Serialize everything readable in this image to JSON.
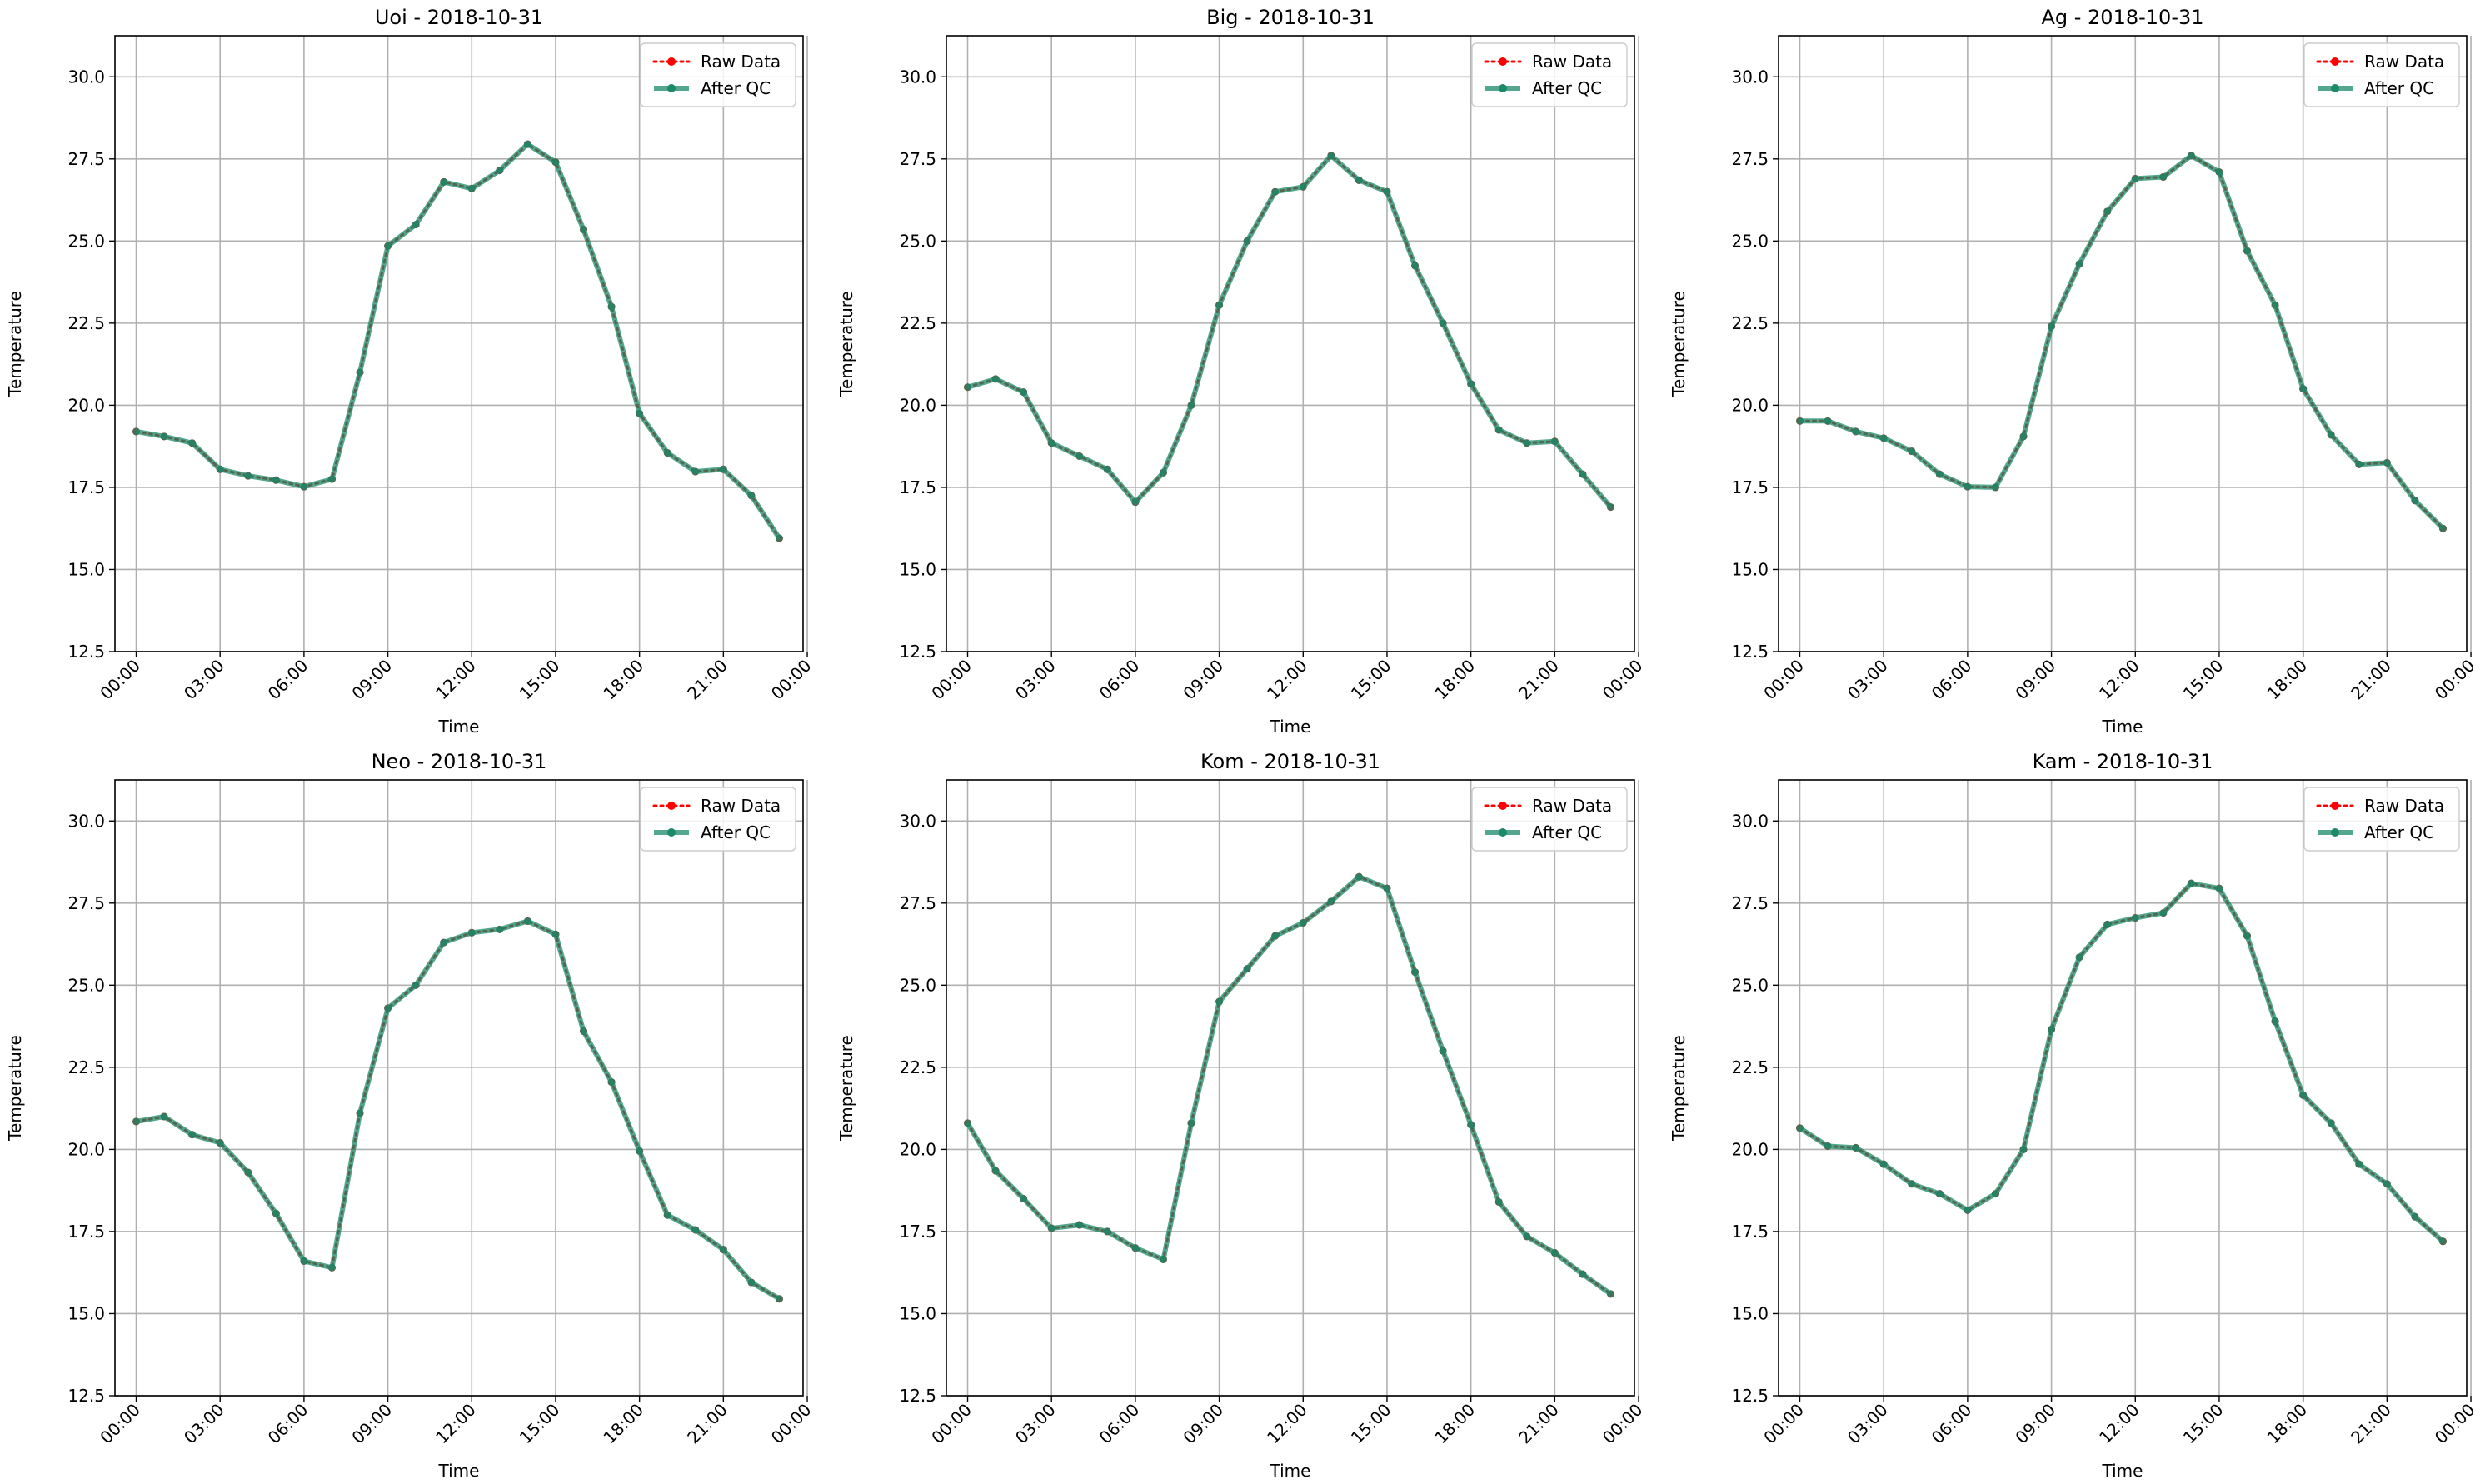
{
  "chart_data": [
    {
      "type": "line",
      "title": "Uoi - 2018-10-31",
      "xlabel": "Time",
      "ylabel": "Temperature",
      "ylim": [
        12.5,
        31.25
      ],
      "yticks": [
        "12.5",
        "15.0",
        "17.5",
        "20.0",
        "22.5",
        "25.0",
        "27.5",
        "30.0"
      ],
      "xticks": [
        "00:00",
        "03:00",
        "06:00",
        "09:00",
        "12:00",
        "15:00",
        "18:00",
        "21:00",
        "00:00"
      ],
      "grid": true,
      "legend": "top-right",
      "x": [
        0,
        1,
        2,
        3,
        4,
        5,
        6,
        7,
        8,
        9,
        10,
        11,
        12,
        13,
        14,
        15,
        16,
        17,
        18,
        19,
        20,
        21,
        22,
        23
      ],
      "series": [
        {
          "name": "Raw Data",
          "color": "#ff0000",
          "style": "dotted",
          "values": [
            19.2,
            19.05,
            18.85,
            18.05,
            17.85,
            17.72,
            17.52,
            17.75,
            21.0,
            24.85,
            25.5,
            26.8,
            26.6,
            27.15,
            27.95,
            27.4,
            25.35,
            23.0,
            19.75,
            18.55,
            17.98,
            18.05,
            17.25,
            15.95
          ]
        },
        {
          "name": "After QC",
          "color": "#1a8a6a",
          "style": "solid",
          "values": [
            19.2,
            19.05,
            18.85,
            18.05,
            17.85,
            17.72,
            17.52,
            17.75,
            21.0,
            24.85,
            25.5,
            26.8,
            26.6,
            27.15,
            27.95,
            27.4,
            25.35,
            23.0,
            19.75,
            18.55,
            17.98,
            18.05,
            17.25,
            15.95
          ]
        }
      ]
    },
    {
      "type": "line",
      "title": "Big - 2018-10-31",
      "xlabel": "Time",
      "ylabel": "Temperature",
      "ylim": [
        12.5,
        31.25
      ],
      "yticks": [
        "12.5",
        "15.0",
        "17.5",
        "20.0",
        "22.5",
        "25.0",
        "27.5",
        "30.0"
      ],
      "xticks": [
        "00:00",
        "03:00",
        "06:00",
        "09:00",
        "12:00",
        "15:00",
        "18:00",
        "21:00",
        "00:00"
      ],
      "grid": true,
      "legend": "top-right",
      "x": [
        0,
        1,
        2,
        3,
        4,
        5,
        6,
        7,
        8,
        9,
        10,
        11,
        12,
        13,
        14,
        15,
        16,
        17,
        18,
        19,
        20,
        21,
        22,
        23
      ],
      "series": [
        {
          "name": "Raw Data",
          "color": "#ff0000",
          "style": "dotted",
          "values": [
            20.55,
            20.8,
            20.4,
            18.85,
            18.45,
            18.05,
            17.05,
            17.95,
            20.0,
            23.05,
            25.0,
            26.5,
            26.65,
            27.6,
            26.85,
            26.5,
            24.25,
            22.5,
            20.65,
            19.25,
            18.85,
            18.9,
            17.9,
            16.9
          ]
        },
        {
          "name": "After QC",
          "color": "#1a8a6a",
          "style": "solid",
          "values": [
            20.55,
            20.8,
            20.4,
            18.85,
            18.45,
            18.05,
            17.05,
            17.95,
            20.0,
            23.05,
            25.0,
            26.5,
            26.65,
            27.6,
            26.85,
            26.5,
            24.25,
            22.5,
            20.65,
            19.25,
            18.85,
            18.9,
            17.9,
            16.9
          ]
        }
      ]
    },
    {
      "type": "line",
      "title": "Ag - 2018-10-31",
      "xlabel": "Time",
      "ylabel": "Temperature",
      "ylim": [
        12.5,
        31.25
      ],
      "yticks": [
        "12.5",
        "15.0",
        "17.5",
        "20.0",
        "22.5",
        "25.0",
        "27.5",
        "30.0"
      ],
      "xticks": [
        "00:00",
        "03:00",
        "06:00",
        "09:00",
        "12:00",
        "15:00",
        "18:00",
        "21:00",
        "00:00"
      ],
      "grid": true,
      "legend": "top-right",
      "x": [
        0,
        1,
        2,
        3,
        4,
        5,
        6,
        7,
        8,
        9,
        10,
        11,
        12,
        13,
        14,
        15,
        16,
        17,
        18,
        19,
        20,
        21,
        22,
        23
      ],
      "series": [
        {
          "name": "Raw Data",
          "color": "#ff0000",
          "style": "dotted",
          "values": [
            19.52,
            19.52,
            19.2,
            19.0,
            18.6,
            17.9,
            17.52,
            17.5,
            19.05,
            22.4,
            24.3,
            25.9,
            26.9,
            26.95,
            27.6,
            27.1,
            24.7,
            23.05,
            20.5,
            19.1,
            18.2,
            18.25,
            17.1,
            16.25
          ]
        },
        {
          "name": "After QC",
          "color": "#1a8a6a",
          "style": "solid",
          "values": [
            19.52,
            19.52,
            19.2,
            19.0,
            18.6,
            17.9,
            17.52,
            17.5,
            19.05,
            22.4,
            24.3,
            25.9,
            26.9,
            26.95,
            27.6,
            27.1,
            24.7,
            23.05,
            20.5,
            19.1,
            18.2,
            18.25,
            17.1,
            16.25
          ]
        }
      ]
    },
    {
      "type": "line",
      "title": "Neo - 2018-10-31",
      "xlabel": "Time",
      "ylabel": "Temperature",
      "ylim": [
        12.5,
        31.25
      ],
      "yticks": [
        "12.5",
        "15.0",
        "17.5",
        "20.0",
        "22.5",
        "25.0",
        "27.5",
        "30.0"
      ],
      "xticks": [
        "00:00",
        "03:00",
        "06:00",
        "09:00",
        "12:00",
        "15:00",
        "18:00",
        "21:00",
        "00:00"
      ],
      "grid": true,
      "legend": "top-right",
      "x": [
        0,
        1,
        2,
        3,
        4,
        5,
        6,
        7,
        8,
        9,
        10,
        11,
        12,
        13,
        14,
        15,
        16,
        17,
        18,
        19,
        20,
        21,
        22,
        23
      ],
      "series": [
        {
          "name": "Raw Data",
          "color": "#ff0000",
          "style": "dotted",
          "values": [
            20.85,
            21.0,
            20.45,
            20.2,
            19.3,
            18.05,
            16.6,
            16.4,
            21.1,
            24.3,
            25.0,
            26.3,
            26.6,
            26.7,
            26.95,
            26.55,
            23.6,
            22.05,
            19.95,
            18.0,
            17.55,
            16.95,
            15.95,
            15.45
          ]
        },
        {
          "name": "After QC",
          "color": "#1a8a6a",
          "style": "solid",
          "values": [
            20.85,
            21.0,
            20.45,
            20.2,
            19.3,
            18.05,
            16.6,
            16.4,
            21.1,
            24.3,
            25.0,
            26.3,
            26.6,
            26.7,
            26.95,
            26.55,
            23.6,
            22.05,
            19.95,
            18.0,
            17.55,
            16.95,
            15.95,
            15.45
          ]
        }
      ]
    },
    {
      "type": "line",
      "title": "Kom - 2018-10-31",
      "xlabel": "Time",
      "ylabel": "Temperature",
      "ylim": [
        12.5,
        31.25
      ],
      "yticks": [
        "12.5",
        "15.0",
        "17.5",
        "20.0",
        "22.5",
        "25.0",
        "27.5",
        "30.0"
      ],
      "xticks": [
        "00:00",
        "03:00",
        "06:00",
        "09:00",
        "12:00",
        "15:00",
        "18:00",
        "21:00",
        "00:00"
      ],
      "grid": true,
      "legend": "top-right",
      "x": [
        0,
        1,
        2,
        3,
        4,
        5,
        6,
        7,
        8,
        9,
        10,
        11,
        12,
        13,
        14,
        15,
        16,
        17,
        18,
        19,
        20,
        21,
        22,
        23
      ],
      "series": [
        {
          "name": "Raw Data",
          "color": "#ff0000",
          "style": "dotted",
          "values": [
            20.8,
            19.35,
            18.5,
            17.6,
            17.7,
            17.5,
            17.0,
            16.65,
            20.8,
            24.5,
            25.5,
            26.5,
            26.9,
            27.55,
            28.3,
            27.95,
            25.4,
            23.0,
            20.75,
            18.4,
            17.35,
            16.85,
            16.2,
            15.6
          ]
        },
        {
          "name": "After QC",
          "color": "#1a8a6a",
          "style": "solid",
          "values": [
            20.8,
            19.35,
            18.5,
            17.6,
            17.7,
            17.5,
            17.0,
            16.65,
            20.8,
            24.5,
            25.5,
            26.5,
            26.9,
            27.55,
            28.3,
            27.95,
            25.4,
            23.0,
            20.75,
            18.4,
            17.35,
            16.85,
            16.2,
            15.6
          ]
        }
      ]
    },
    {
      "type": "line",
      "title": "Kam - 2018-10-31",
      "xlabel": "Time",
      "ylabel": "Temperature",
      "ylim": [
        12.5,
        31.25
      ],
      "yticks": [
        "12.5",
        "15.0",
        "17.5",
        "20.0",
        "22.5",
        "25.0",
        "27.5",
        "30.0"
      ],
      "xticks": [
        "00:00",
        "03:00",
        "06:00",
        "09:00",
        "12:00",
        "15:00",
        "18:00",
        "21:00",
        "00:00"
      ],
      "grid": true,
      "legend": "top-right",
      "x": [
        0,
        1,
        2,
        3,
        4,
        5,
        6,
        7,
        8,
        9,
        10,
        11,
        12,
        13,
        14,
        15,
        16,
        17,
        18,
        19,
        20,
        21,
        22,
        23
      ],
      "series": [
        {
          "name": "Raw Data",
          "color": "#ff0000",
          "style": "dotted",
          "values": [
            20.65,
            20.1,
            20.05,
            19.55,
            18.95,
            18.65,
            18.15,
            18.65,
            20.0,
            23.65,
            25.85,
            26.85,
            27.05,
            27.2,
            28.1,
            27.95,
            26.5,
            23.9,
            21.65,
            20.8,
            19.55,
            18.95,
            17.95,
            17.2
          ]
        },
        {
          "name": "After QC",
          "color": "#1a8a6a",
          "style": "solid",
          "values": [
            20.65,
            20.1,
            20.05,
            19.55,
            18.95,
            18.65,
            18.15,
            18.65,
            20.0,
            23.65,
            25.85,
            26.85,
            27.05,
            27.2,
            28.1,
            27.95,
            26.5,
            23.9,
            21.65,
            20.8,
            19.55,
            18.95,
            17.95,
            17.2
          ]
        }
      ]
    }
  ]
}
